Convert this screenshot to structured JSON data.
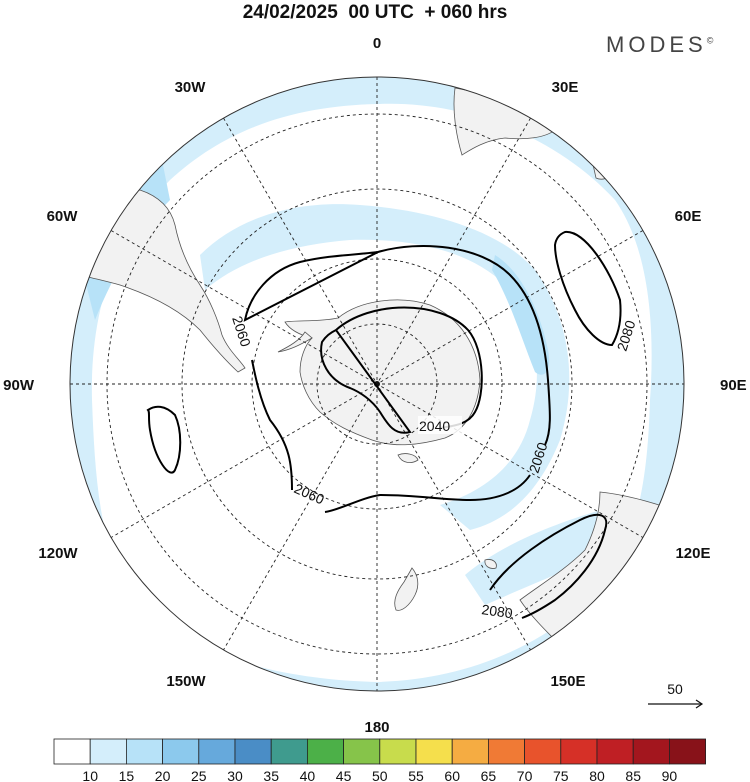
{
  "header": {
    "title": "24/02/2025  00 UTC  + 060 hrs",
    "logo": "MODES",
    "logo_mark": "©"
  },
  "map": {
    "projection": "south-polar-stereographic",
    "longitude_labels": [
      "0",
      "30E",
      "60E",
      "90E",
      "120E",
      "150E",
      "180",
      "150W",
      "120W",
      "90W",
      "60W",
      "30W"
    ],
    "contours": [
      {
        "label": "2040"
      },
      {
        "label": "2060"
      },
      {
        "label": "2060"
      },
      {
        "label": "2060"
      },
      {
        "label": "2080"
      },
      {
        "label": "2080"
      }
    ]
  },
  "wind_legend": {
    "label": "50"
  },
  "colorbar": {
    "ticks": [
      "10",
      "15",
      "20",
      "25",
      "30",
      "35",
      "40",
      "45",
      "50",
      "55",
      "60",
      "65",
      "70",
      "75",
      "80",
      "85",
      "90"
    ],
    "colors": [
      "#ffffff",
      "#d4eefb",
      "#b7e2f8",
      "#8cc9ed",
      "#66a9dc",
      "#4a8dc6",
      "#3f9b8e",
      "#4cb048",
      "#86c44a",
      "#c8dc4c",
      "#f5df4c",
      "#f5ac42",
      "#f07a35",
      "#e8532c",
      "#d63027",
      "#bf1f24",
      "#a3161e",
      "#881219"
    ]
  }
}
